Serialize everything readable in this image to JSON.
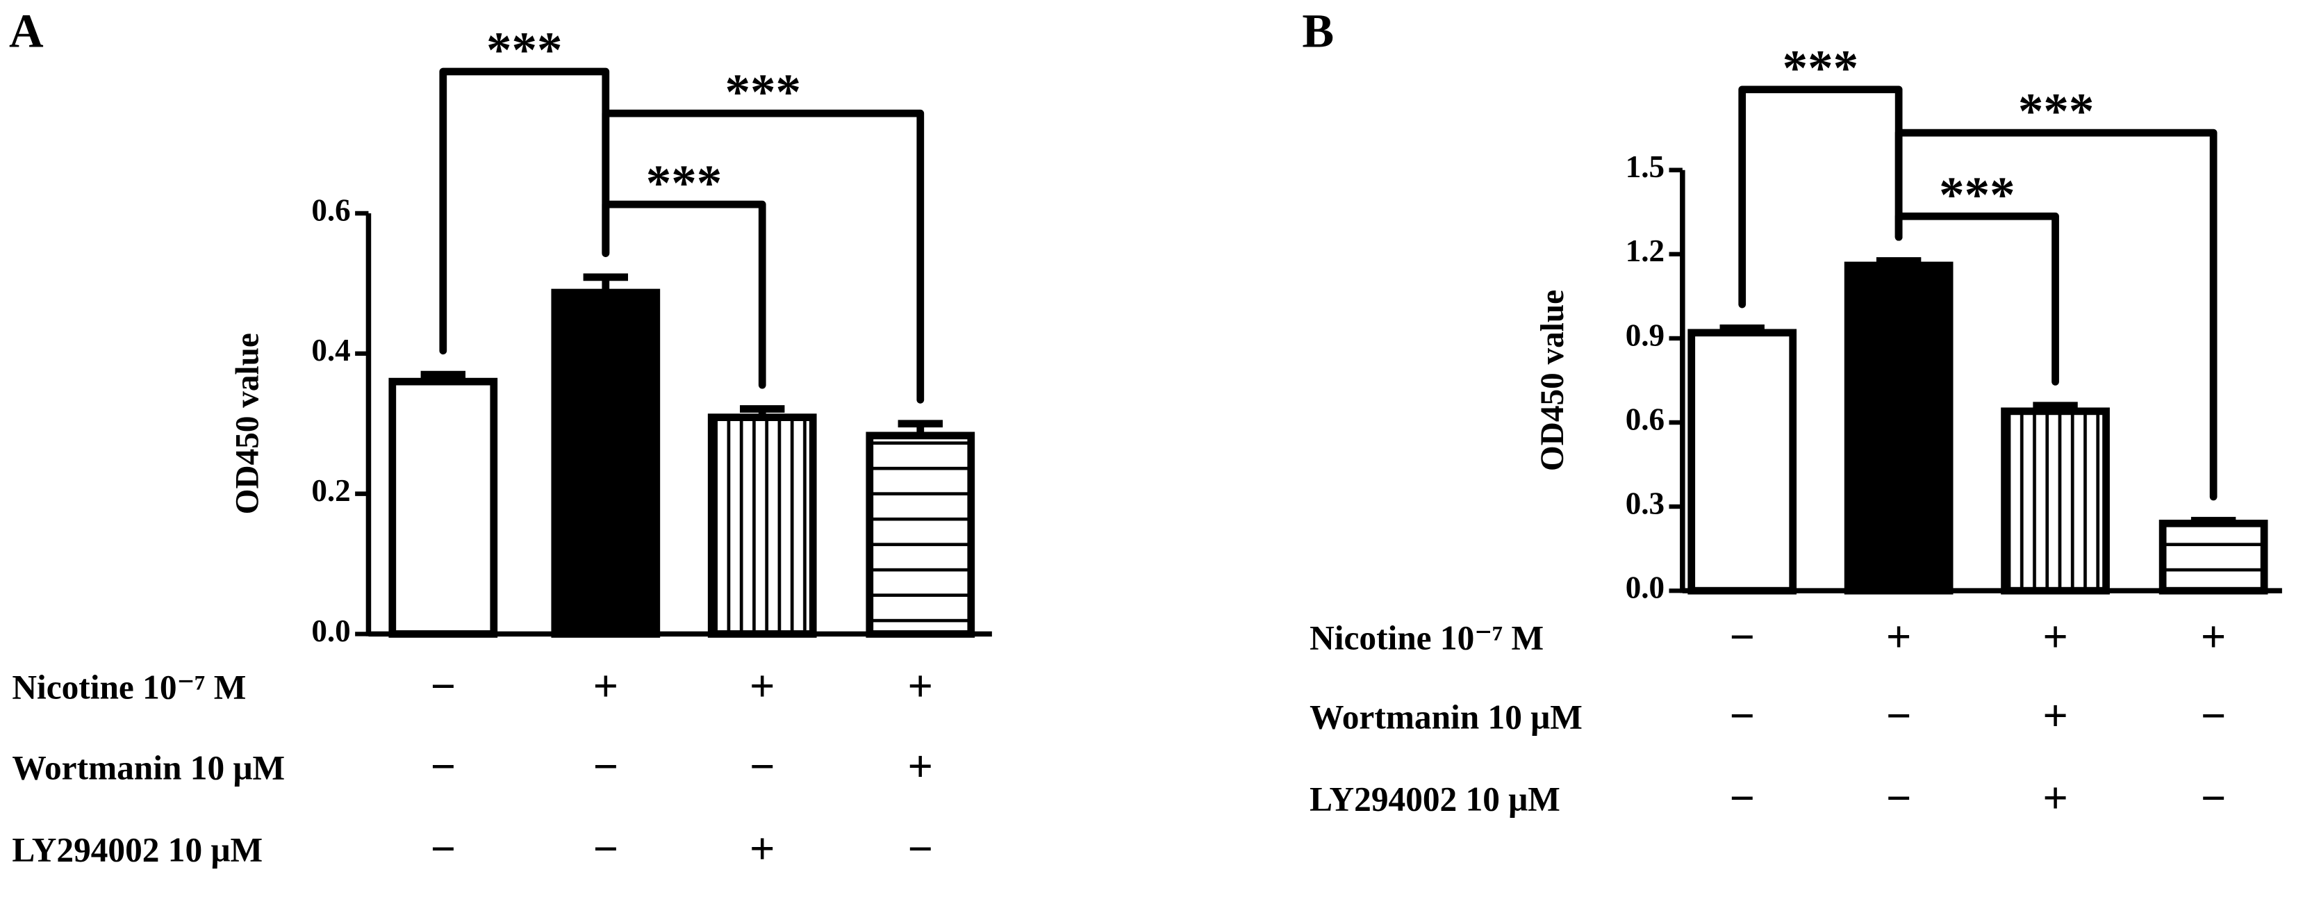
{
  "chart_data": [
    {
      "type": "bar",
      "panel_label": "A",
      "y_label": "OD450 value",
      "ylim": [
        0,
        0.6
      ],
      "yticks": [
        {
          "value": 0,
          "label": "0.0"
        },
        0.2,
        0.4,
        0.6
      ],
      "values": [
        0.36,
        0.487,
        0.309,
        0.283
      ],
      "errors": [
        0.01,
        0.022,
        0.012,
        0.017
      ],
      "patterns": [
        "none",
        "solid",
        "vertical",
        "horizontal"
      ],
      "color": "#000000",
      "significance": [
        {
          "from": 0,
          "to": 1,
          "label": "***"
        },
        {
          "from": 1,
          "to": 3,
          "label": "***"
        },
        {
          "from": 1,
          "to": 2,
          "label": "***"
        }
      ],
      "treatments": [
        {
          "label": "Nicotine 10⁻⁷ M",
          "values": [
            "−",
            "+",
            "+",
            "+"
          ]
        },
        {
          "label": "Wortmanin 10 μM",
          "values": [
            "−",
            "−",
            "−",
            "+"
          ]
        },
        {
          "label": "LY294002 10 μM",
          "values": [
            "−",
            "−",
            "+",
            "−"
          ]
        }
      ]
    },
    {
      "type": "bar",
      "panel_label": "B",
      "y_label": "OD450 value",
      "ylim": [
        0,
        1.5
      ],
      "yticks": [
        {
          "value": 0,
          "label": "0.0"
        },
        0.3,
        0.6,
        0.9,
        1.2,
        1.5
      ],
      "values": [
        0.92,
        1.16,
        0.64,
        0.24
      ],
      "errors": [
        0.016,
        0.016,
        0.02,
        0.01
      ],
      "patterns": [
        "none",
        "solid",
        "vertical",
        "horizontal"
      ],
      "color": "#000000",
      "significance": [
        {
          "from": 0,
          "to": 1,
          "label": "***"
        },
        {
          "from": 1,
          "to": 3,
          "label": "***"
        },
        {
          "from": 1,
          "to": 2,
          "label": "***"
        }
      ],
      "treatments": [
        {
          "label": "Nicotine 10⁻⁷ M",
          "values": [
            "−",
            "+",
            "+",
            "+"
          ]
        },
        {
          "label": "Wortmanin 10 μM",
          "values": [
            "−",
            "−",
            "+",
            "−"
          ]
        },
        {
          "label": "LY294002 10 μM",
          "values": [
            "−",
            "−",
            "+",
            "−"
          ]
        }
      ]
    }
  ]
}
